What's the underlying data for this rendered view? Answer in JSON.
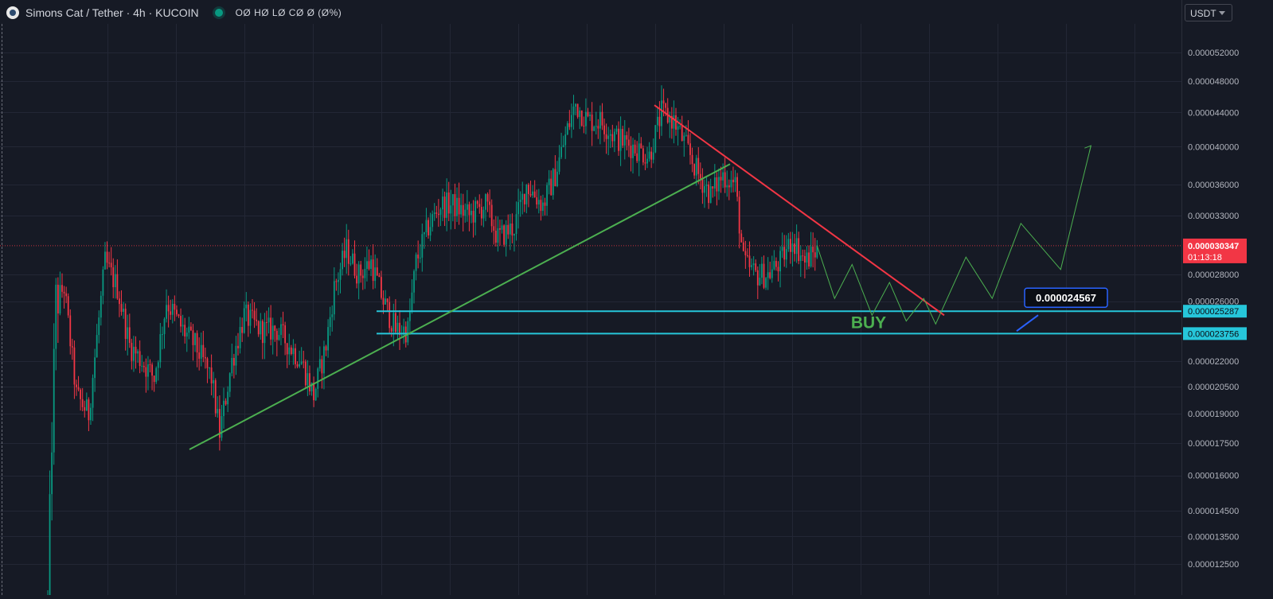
{
  "header": {
    "title": "Simons Cat / Tether · 4h · KUCOIN",
    "ohlc": "OØ HØ LØ CØ Ø (Ø%)"
  },
  "currency_button": {
    "label": "USDT"
  },
  "price_labels": {
    "current_price": "0.000030347",
    "countdown": "01:13:18",
    "level_upper": "0.000025287",
    "level_lower": "0.000023756",
    "callout": "0.000024567"
  },
  "annotations": {
    "buy": "BUY"
  },
  "colors": {
    "background": "#161a25",
    "up": "#089981",
    "down": "#f23645",
    "support_line": "#26c6da",
    "trend_up": "#4caf50",
    "trend_down": "#f23645",
    "projection": "#4caf50",
    "callout_border": "#2962ff"
  },
  "chart_data": {
    "type": "candlestick",
    "scale": "log",
    "y_axis_ticks": [
      "0.000052000",
      "0.000048000",
      "0.000044000",
      "0.000040000",
      "0.000036000",
      "0.000033000",
      "0.000028000",
      "0.000026000",
      "0.000022000",
      "0.000020500",
      "0.000019000",
      "0.000017500",
      "0.000016000",
      "0.000014500",
      "0.000013500",
      "0.000012500"
    ],
    "price_trajectory": [
      [
        0,
        1.1e-05
      ],
      [
        2,
        1.8e-05
      ],
      [
        4,
        2.6e-05
      ],
      [
        8,
        2.7e-05
      ],
      [
        14,
        2e-05
      ],
      [
        20,
        1.9e-05
      ],
      [
        28,
        2.9e-05
      ],
      [
        34,
        2.7e-05
      ],
      [
        40,
        2.3e-05
      ],
      [
        46,
        2.2e-05
      ],
      [
        52,
        2.1e-05
      ],
      [
        58,
        2.6e-05
      ],
      [
        66,
        2.4e-05
      ],
      [
        72,
        2.3e-05
      ],
      [
        80,
        2.1e-05
      ],
      [
        84,
        1.8e-05
      ],
      [
        90,
        2.2e-05
      ],
      [
        96,
        2.5e-05
      ],
      [
        104,
        2.4e-05
      ],
      [
        112,
        2.4e-05
      ],
      [
        118,
        2.3e-05
      ],
      [
        124,
        2.2e-05
      ],
      [
        130,
        2e-05
      ],
      [
        136,
        2.3e-05
      ],
      [
        140,
        2.7e-05
      ],
      [
        146,
        3e-05
      ],
      [
        152,
        2.8e-05
      ],
      [
        158,
        2.9e-05
      ],
      [
        164,
        2.6e-05
      ],
      [
        170,
        2.4e-05
      ],
      [
        176,
        2.4e-05
      ],
      [
        180,
        2.9e-05
      ],
      [
        186,
        3.2e-05
      ],
      [
        192,
        3.4e-05
      ],
      [
        198,
        3.4e-05
      ],
      [
        206,
        3.3e-05
      ],
      [
        214,
        3.4e-05
      ],
      [
        220,
        3.1e-05
      ],
      [
        228,
        3.2e-05
      ],
      [
        234,
        3.6e-05
      ],
      [
        242,
        3.4e-05
      ],
      [
        248,
        3.7e-05
      ],
      [
        254,
        4.2e-05
      ],
      [
        258,
        4.5e-05
      ],
      [
        264,
        4.3e-05
      ],
      [
        270,
        4.3e-05
      ],
      [
        278,
        4.1e-05
      ],
      [
        286,
        4e-05
      ],
      [
        294,
        3.9e-05
      ],
      [
        300,
        4.4e-05
      ],
      [
        306,
        4.3e-05
      ],
      [
        312,
        4e-05
      ],
      [
        318,
        3.7e-05
      ],
      [
        324,
        3.5e-05
      ],
      [
        330,
        3.7e-05
      ],
      [
        336,
        3.6e-05
      ],
      [
        340,
        2.9e-05
      ],
      [
        346,
        2.8e-05
      ],
      [
        352,
        2.8e-05
      ],
      [
        358,
        2.9e-05
      ],
      [
        364,
        3.1e-05
      ],
      [
        370,
        2.9e-05
      ],
      [
        376,
        3e-05
      ]
    ],
    "support_levels": [
      2.5287e-05,
      2.3756e-05
    ],
    "uptrend_line": [
      [
        1.72e-05
      ],
      [
        3.81e-05
      ]
    ],
    "downtrend_line": [
      [
        4.49e-05
      ],
      [
        2.5e-05
      ]
    ],
    "projection_path": [
      3.0347e-05,
      2.62e-05,
      2.88e-05,
      2.5e-05,
      2.74e-05,
      2.46e-05,
      2.62e-05,
      2.44e-05,
      2.94e-05,
      2.62e-05,
      3.23e-05,
      2.84e-05,
      4.01e-05
    ],
    "grid": true
  }
}
